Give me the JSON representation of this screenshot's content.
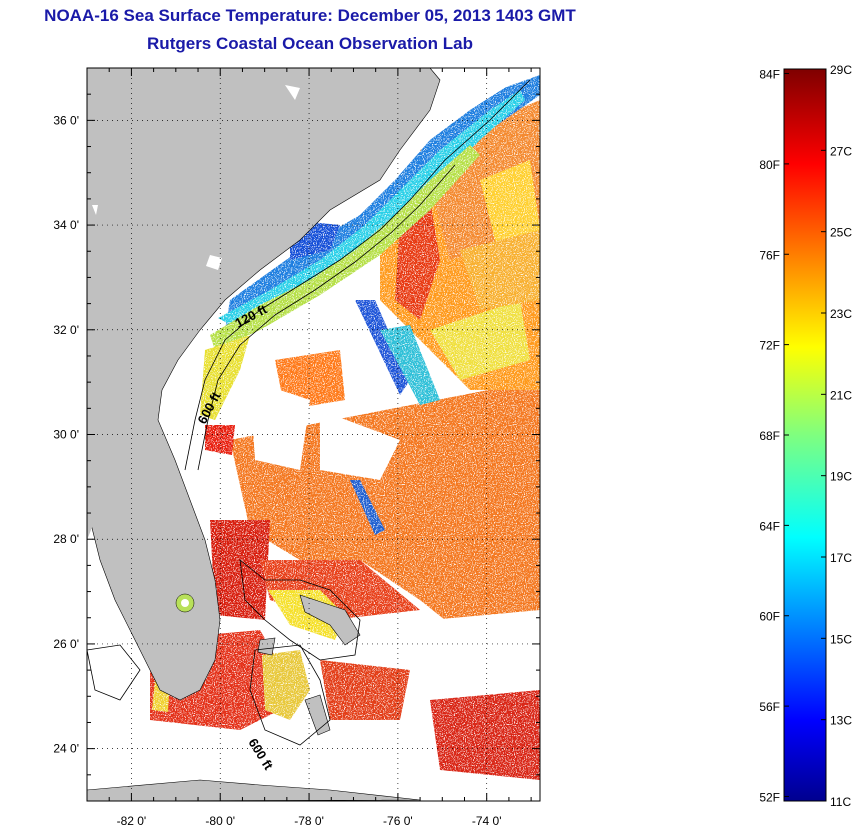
{
  "header": {
    "title": "NOAA-16 Sea Surface Temperature:  December 05, 2013 1403 GMT",
    "subtitle": "Rutgers Coastal Ocean Observation Lab"
  },
  "map": {
    "lon_range": [
      -83,
      -72.8
    ],
    "lat_range": [
      23,
      37
    ],
    "x_ticks": [
      "-82 0'",
      "-80 0'",
      "-78 0'",
      "-76 0'",
      "-74 0'"
    ],
    "y_ticks": [
      "36 0'",
      "34 0'",
      "32 0'",
      "30 0'",
      "28 0'",
      "26 0'",
      "24 0'"
    ],
    "contour_labels": [
      "120 ft",
      "600 ft",
      "600 ft"
    ],
    "land_color": "#c0c0c0",
    "grid": "dotted"
  },
  "colorbar": {
    "fahrenheit_labels": [
      "84F",
      "80F",
      "76F",
      "72F",
      "68F",
      "64F",
      "60F",
      "56F",
      "52F"
    ],
    "celsius_labels": [
      "29C",
      "27C",
      "25C",
      "23C",
      "21C",
      "19C",
      "17C",
      "15C",
      "13C",
      "11C"
    ],
    "range_c": [
      11,
      29
    ],
    "colormap": "jet"
  }
}
